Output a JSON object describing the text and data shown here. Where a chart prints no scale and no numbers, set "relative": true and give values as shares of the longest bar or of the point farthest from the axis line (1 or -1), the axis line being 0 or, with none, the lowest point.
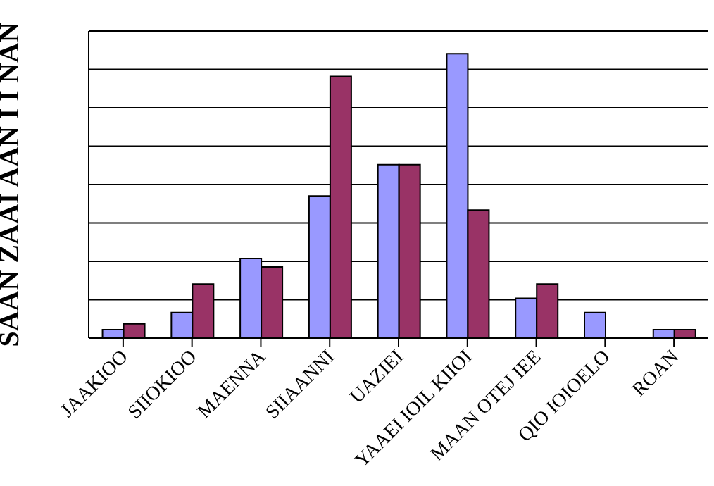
{
  "chart_data": {
    "type": "bar",
    "ylabel": "SAAN ZAAI AAN I I NAN",
    "categories": [
      "JAAKIOO",
      "SIIOKIOO",
      "MAENNA",
      "SIIAANNI",
      "UAZIEI",
      "YAAEI IOIL KIIOI",
      "MAAN OTEJ IEE",
      "QIO IOIOELO",
      "ROAN"
    ],
    "series": [
      {
        "color": "#9999ff",
        "values": [
          0.03,
          0.09,
          0.28,
          0.5,
          0.61,
          1,
          0.14,
          0.09,
          0.03
        ]
      },
      {
        "color": "#993366",
        "values": [
          0.05,
          0.19,
          0.25,
          0.92,
          0.61,
          0.45,
          0.19,
          0,
          0.03
        ]
      }
    ],
    "relative": true,
    "grid": "y"
  }
}
